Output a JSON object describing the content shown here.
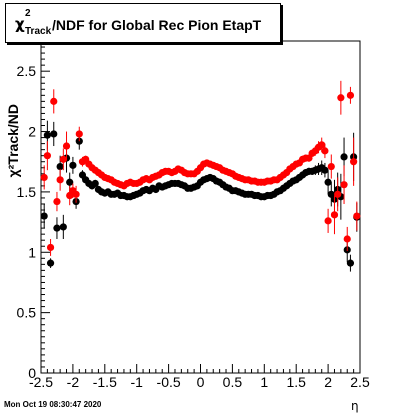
{
  "chart_data": {
    "type": "scatter",
    "title_parts": {
      "chi": "χ",
      "sup": "2",
      "sub": "Track",
      "rest": "/NDF for Global Rec Pion EtapT"
    },
    "xlabel": "η",
    "ylabel": "χ²Track/ND",
    "xlim": [
      -2.5,
      2.5
    ],
    "ylim": [
      0,
      2.75
    ],
    "x_ticks": [
      "-2.5",
      "-2",
      "-1.5",
      "-1",
      "-0.5",
      "0",
      "0.5",
      "1",
      "1.5",
      "2",
      "2.5"
    ],
    "y_ticks": [
      "0",
      "0.5",
      "1",
      "1.5",
      "2",
      "2.5"
    ],
    "grid": false,
    "series": [
      {
        "color": "#000000",
        "x": [
          -2.45,
          -2.4,
          -2.35,
          -2.3,
          -2.25,
          -2.2,
          -2.15,
          -2.1,
          -2.05,
          -2.0,
          -1.95,
          -1.9,
          -1.85,
          -1.8,
          -1.75,
          -1.7,
          -1.65,
          -1.6,
          -1.55,
          -1.5,
          -1.45,
          -1.4,
          -1.35,
          -1.3,
          -1.25,
          -1.2,
          -1.15,
          -1.1,
          -1.05,
          -1.0,
          -0.95,
          -0.9,
          -0.85,
          -0.8,
          -0.75,
          -0.7,
          -0.65,
          -0.6,
          -0.55,
          -0.5,
          -0.45,
          -0.4,
          -0.35,
          -0.3,
          -0.25,
          -0.2,
          -0.15,
          -0.1,
          -0.05,
          0.0,
          0.05,
          0.1,
          0.15,
          0.2,
          0.25,
          0.3,
          0.35,
          0.4,
          0.45,
          0.5,
          0.55,
          0.6,
          0.65,
          0.7,
          0.75,
          0.8,
          0.85,
          0.9,
          0.95,
          1.0,
          1.05,
          1.1,
          1.15,
          1.2,
          1.25,
          1.3,
          1.35,
          1.4,
          1.45,
          1.5,
          1.55,
          1.6,
          1.65,
          1.7,
          1.75,
          1.8,
          1.85,
          1.9,
          1.95,
          2.0,
          2.05,
          2.1,
          2.15,
          2.2,
          2.25,
          2.3,
          2.35,
          2.4,
          2.45
        ],
        "y": [
          1.3,
          1.97,
          0.91,
          1.98,
          1.2,
          1.71,
          1.21,
          1.78,
          1.58,
          1.72,
          1.42,
          1.92,
          1.64,
          1.6,
          1.57,
          1.55,
          1.57,
          1.52,
          1.5,
          1.49,
          1.5,
          1.48,
          1.48,
          1.49,
          1.47,
          1.47,
          1.46,
          1.46,
          1.47,
          1.48,
          1.49,
          1.51,
          1.52,
          1.51,
          1.53,
          1.52,
          1.55,
          1.54,
          1.55,
          1.56,
          1.57,
          1.57,
          1.57,
          1.56,
          1.55,
          1.53,
          1.53,
          1.54,
          1.55,
          1.58,
          1.6,
          1.61,
          1.62,
          1.61,
          1.59,
          1.58,
          1.56,
          1.54,
          1.53,
          1.51,
          1.51,
          1.5,
          1.49,
          1.48,
          1.48,
          1.48,
          1.47,
          1.47,
          1.46,
          1.46,
          1.47,
          1.47,
          1.48,
          1.5,
          1.51,
          1.53,
          1.55,
          1.57,
          1.59,
          1.6,
          1.62,
          1.64,
          1.66,
          1.67,
          1.67,
          1.68,
          1.69,
          1.7,
          1.68,
          1.58,
          1.48,
          1.44,
          1.52,
          1.46,
          1.79,
          1.02,
          0.91,
          1.79,
          1.29
        ],
        "err": [
          0.1,
          0.12,
          0.04,
          0.1,
          0.09,
          0.09,
          0.1,
          0.12,
          0.08,
          0.07,
          0.06,
          0.07,
          0.04,
          0.03,
          0.03,
          0.03,
          0.03,
          0.03,
          0.02,
          0.02,
          0.02,
          0.02,
          0.02,
          0.02,
          0.02,
          0.02,
          0.02,
          0.02,
          0.02,
          0.02,
          0.02,
          0.02,
          0.02,
          0.02,
          0.02,
          0.02,
          0.02,
          0.02,
          0.02,
          0.02,
          0.02,
          0.02,
          0.02,
          0.02,
          0.02,
          0.02,
          0.02,
          0.02,
          0.02,
          0.02,
          0.02,
          0.02,
          0.02,
          0.02,
          0.02,
          0.02,
          0.02,
          0.02,
          0.02,
          0.02,
          0.02,
          0.02,
          0.02,
          0.02,
          0.02,
          0.02,
          0.02,
          0.02,
          0.02,
          0.02,
          0.02,
          0.02,
          0.02,
          0.02,
          0.02,
          0.02,
          0.02,
          0.02,
          0.02,
          0.02,
          0.02,
          0.03,
          0.03,
          0.03,
          0.03,
          0.04,
          0.05,
          0.06,
          0.06,
          0.1,
          0.1,
          0.16,
          0.14,
          0.19,
          0.16,
          0.1,
          0.07,
          0.2,
          0.12
        ]
      },
      {
        "color": "#ff0000",
        "x": [
          -2.45,
          -2.4,
          -2.35,
          -2.3,
          -2.25,
          -2.2,
          -2.15,
          -2.1,
          -2.05,
          -2.0,
          -1.95,
          -1.9,
          -1.85,
          -1.8,
          -1.75,
          -1.7,
          -1.65,
          -1.6,
          -1.55,
          -1.5,
          -1.45,
          -1.4,
          -1.35,
          -1.3,
          -1.25,
          -1.2,
          -1.15,
          -1.1,
          -1.05,
          -1.0,
          -0.95,
          -0.9,
          -0.85,
          -0.8,
          -0.75,
          -0.7,
          -0.65,
          -0.6,
          -0.55,
          -0.5,
          -0.45,
          -0.4,
          -0.35,
          -0.3,
          -0.25,
          -0.2,
          -0.15,
          -0.1,
          -0.05,
          0.0,
          0.05,
          0.1,
          0.15,
          0.2,
          0.25,
          0.3,
          0.35,
          0.4,
          0.45,
          0.5,
          0.55,
          0.6,
          0.65,
          0.7,
          0.75,
          0.8,
          0.85,
          0.9,
          0.95,
          1.0,
          1.05,
          1.1,
          1.15,
          1.2,
          1.25,
          1.3,
          1.35,
          1.4,
          1.45,
          1.5,
          1.55,
          1.6,
          1.65,
          1.7,
          1.75,
          1.8,
          1.85,
          1.9,
          1.95,
          2.0,
          2.05,
          2.1,
          2.15,
          2.2,
          2.25,
          2.3,
          2.35,
          2.4,
          2.45
        ],
        "y": [
          1.62,
          1.8,
          1.04,
          2.25,
          1.42,
          1.6,
          1.77,
          1.88,
          1.47,
          1.51,
          1.48,
          1.98,
          1.75,
          1.77,
          1.73,
          1.7,
          1.68,
          1.66,
          1.64,
          1.62,
          1.61,
          1.6,
          1.58,
          1.57,
          1.56,
          1.55,
          1.57,
          1.58,
          1.57,
          1.57,
          1.58,
          1.6,
          1.61,
          1.6,
          1.62,
          1.63,
          1.64,
          1.66,
          1.67,
          1.67,
          1.66,
          1.67,
          1.69,
          1.68,
          1.66,
          1.65,
          1.65,
          1.65,
          1.67,
          1.7,
          1.73,
          1.74,
          1.73,
          1.72,
          1.71,
          1.7,
          1.68,
          1.67,
          1.66,
          1.65,
          1.63,
          1.62,
          1.61,
          1.6,
          1.6,
          1.59,
          1.59,
          1.58,
          1.58,
          1.58,
          1.59,
          1.59,
          1.6,
          1.6,
          1.62,
          1.64,
          1.66,
          1.69,
          1.71,
          1.73,
          1.74,
          1.77,
          1.78,
          1.78,
          1.82,
          1.84,
          1.87,
          1.89,
          1.84,
          1.26,
          1.71,
          1.31,
          1.48,
          2.28,
          1.56,
          1.11,
          2.3,
          1.75,
          1.3
        ],
        "err": [
          0.1,
          0.12,
          0.07,
          0.1,
          0.08,
          0.09,
          0.09,
          0.12,
          0.08,
          0.06,
          0.07,
          0.06,
          0.04,
          0.03,
          0.03,
          0.03,
          0.03,
          0.03,
          0.02,
          0.02,
          0.02,
          0.02,
          0.02,
          0.02,
          0.02,
          0.02,
          0.02,
          0.02,
          0.02,
          0.02,
          0.02,
          0.02,
          0.02,
          0.02,
          0.02,
          0.02,
          0.02,
          0.02,
          0.02,
          0.02,
          0.02,
          0.02,
          0.02,
          0.02,
          0.02,
          0.02,
          0.02,
          0.02,
          0.02,
          0.02,
          0.02,
          0.02,
          0.02,
          0.02,
          0.02,
          0.02,
          0.02,
          0.02,
          0.02,
          0.02,
          0.02,
          0.02,
          0.02,
          0.02,
          0.02,
          0.02,
          0.02,
          0.02,
          0.02,
          0.02,
          0.02,
          0.02,
          0.02,
          0.02,
          0.02,
          0.02,
          0.02,
          0.02,
          0.02,
          0.02,
          0.02,
          0.03,
          0.03,
          0.03,
          0.03,
          0.04,
          0.05,
          0.06,
          0.06,
          0.1,
          0.1,
          0.16,
          0.14,
          0.14,
          0.16,
          0.1,
          0.07,
          0.2,
          0.12
        ]
      }
    ]
  },
  "footer": {
    "timestamp": "Mon Oct 19 08:30:47 2020"
  }
}
